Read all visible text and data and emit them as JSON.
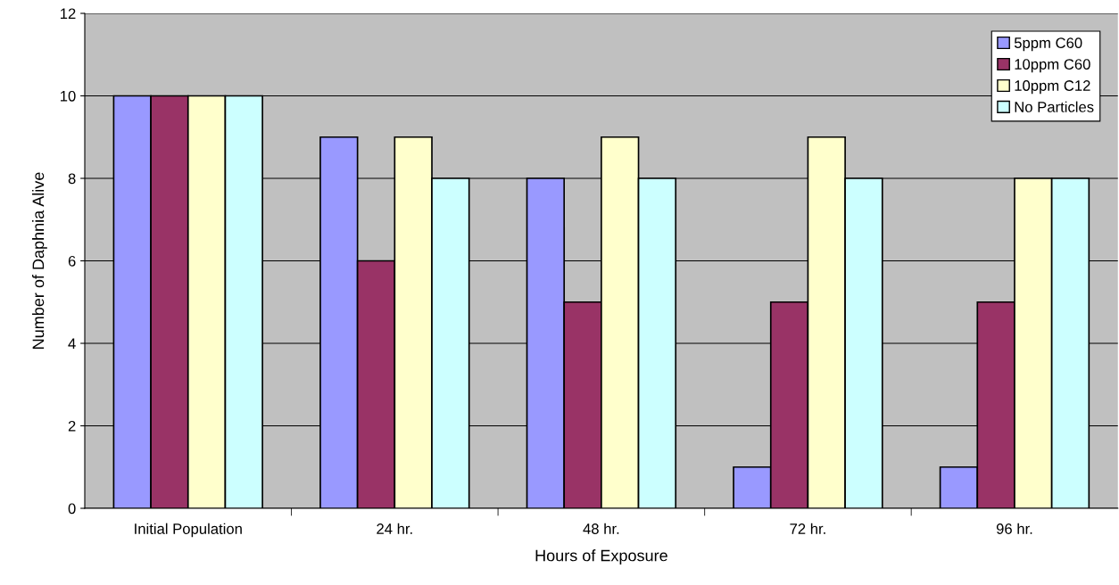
{
  "chart_data": {
    "type": "bar",
    "xlabel": "Hours of Exposure",
    "ylabel": "Number of Daphnia Alive",
    "categories": [
      "Initial Population",
      "24 hr.",
      "48 hr.",
      "72 hr.",
      "96 hr."
    ],
    "series": [
      {
        "name": "5ppm C60",
        "color": "#9999ff",
        "values": [
          10,
          9,
          8,
          1,
          1
        ]
      },
      {
        "name": "10ppm C60",
        "color": "#993366",
        "values": [
          10,
          6,
          5,
          5,
          5
        ]
      },
      {
        "name": "10ppm C12",
        "color": "#ffffcc",
        "values": [
          10,
          9,
          9,
          9,
          8
        ]
      },
      {
        "name": "No Particles",
        "color": "#ccffff",
        "values": [
          10,
          8,
          8,
          8,
          8
        ]
      }
    ],
    "ylim": [
      0,
      12
    ],
    "yticks": [
      0,
      2,
      4,
      6,
      8,
      10,
      12
    ],
    "grid": "y",
    "legend": "top right"
  }
}
